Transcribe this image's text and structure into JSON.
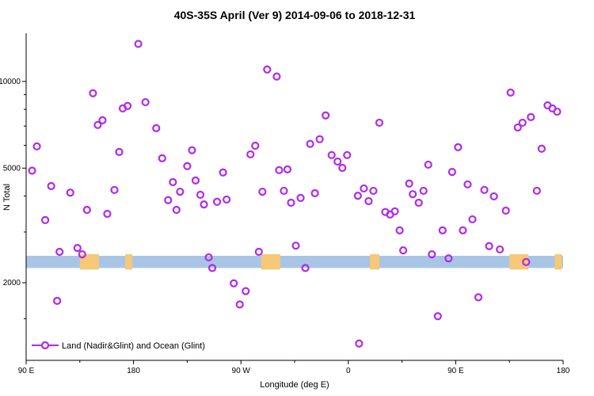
{
  "page": {
    "background": "#ffffff"
  },
  "chart_data": {
    "type": "scatter",
    "title": "40S-35S April (Ver 9)   2014-09-06 to 2018-12-31",
    "xlabel": "Longitude (deg E)",
    "ylabel": "N Total",
    "legend_label": "Land (Nadir&Glint) and Ocean (Glint)",
    "grid": false,
    "legend_position": "bottom-left-inside",
    "x_axis": {
      "min": 90,
      "max": 540,
      "major_ticks": [
        {
          "value": 90,
          "label": "90 E"
        },
        {
          "value": 180,
          "label": "180"
        },
        {
          "value": 270,
          "label": "90 W"
        },
        {
          "value": 360,
          "label": "0"
        },
        {
          "value": 450,
          "label": "90 E"
        },
        {
          "value": 540,
          "label": "180"
        }
      ],
      "minor_ticks": [
        135,
        225,
        315,
        405,
        495
      ]
    },
    "y_axis": {
      "scale": "log",
      "min": 1075,
      "max": 14700,
      "major_ticks": [
        {
          "value": 2000,
          "label": "2000"
        },
        {
          "value": 5000,
          "label": "5000"
        },
        {
          "value": 10000,
          "label": "10000"
        }
      ],
      "minor_ticks": [
        1500,
        3000,
        4000,
        6000,
        7000,
        8000,
        9000
      ]
    },
    "marker": {
      "shape": "open-circle",
      "color": "#b22ae8",
      "radius": 4,
      "stroke_width": 2.2
    },
    "map_band": {
      "description": "latitude-band map strip: ocean with land segments",
      "value_low": 2250,
      "value_high": 2480,
      "ocean_color": "#a9c5e6",
      "land_color": "#f6c878",
      "land_segments_deg": [
        [
          135,
          151
        ],
        [
          173,
          179
        ],
        [
          287,
          303
        ],
        [
          378,
          386
        ],
        [
          495,
          511
        ],
        [
          533,
          539
        ]
      ]
    },
    "points": [
      [
        95,
        4900
      ],
      [
        99,
        5950
      ],
      [
        106,
        3300
      ],
      [
        111,
        4330
      ],
      [
        116,
        1730
      ],
      [
        118,
        2560
      ],
      [
        127,
        4110
      ],
      [
        133,
        2640
      ],
      [
        137,
        2510
      ],
      [
        141,
        3580
      ],
      [
        146,
        9100
      ],
      [
        150,
        7060
      ],
      [
        154,
        7330
      ],
      [
        158,
        3470
      ],
      [
        164,
        4200
      ],
      [
        168,
        5690
      ],
      [
        171,
        8060
      ],
      [
        175,
        8220
      ],
      [
        184,
        13500
      ],
      [
        190,
        8470
      ],
      [
        199,
        6880
      ],
      [
        204,
        5410
      ],
      [
        209,
        3870
      ],
      [
        213,
        4470
      ],
      [
        216,
        3580
      ],
      [
        219,
        4140
      ],
      [
        225,
        5080
      ],
      [
        229,
        5770
      ],
      [
        232,
        4530
      ],
      [
        236,
        4040
      ],
      [
        239,
        3740
      ],
      [
        243,
        2450
      ],
      [
        246,
        2250
      ],
      [
        250,
        3820
      ],
      [
        255,
        4830
      ],
      [
        258,
        3890
      ],
      [
        264,
        1990
      ],
      [
        269,
        1680
      ],
      [
        274,
        1870
      ],
      [
        278,
        5580
      ],
      [
        282,
        5980
      ],
      [
        285,
        2560
      ],
      [
        288,
        4140
      ],
      [
        292,
        11000
      ],
      [
        300,
        10400
      ],
      [
        302,
        4920
      ],
      [
        306,
        4170
      ],
      [
        309,
        4950
      ],
      [
        312,
        3790
      ],
      [
        316,
        2690
      ],
      [
        320,
        3940
      ],
      [
        324,
        2250
      ],
      [
        328,
        6070
      ],
      [
        332,
        4090
      ],
      [
        336,
        6300
      ],
      [
        341,
        7620
      ],
      [
        346,
        5550
      ],
      [
        351,
        5270
      ],
      [
        355,
        5010
      ],
      [
        359,
        5550
      ],
      [
        368,
        4010
      ],
      [
        369,
        1230
      ],
      [
        373,
        4250
      ],
      [
        377,
        3840
      ],
      [
        381,
        4170
      ],
      [
        386,
        7190
      ],
      [
        391,
        3520
      ],
      [
        395,
        3450
      ],
      [
        399,
        3540
      ],
      [
        403,
        3040
      ],
      [
        406,
        2590
      ],
      [
        411,
        4420
      ],
      [
        414,
        4060
      ],
      [
        419,
        3790
      ],
      [
        423,
        4170
      ],
      [
        427,
        5140
      ],
      [
        430,
        2510
      ],
      [
        435,
        1530
      ],
      [
        439,
        3040
      ],
      [
        444,
        2430
      ],
      [
        447,
        4850
      ],
      [
        452,
        5910
      ],
      [
        456,
        3040
      ],
      [
        460,
        4390
      ],
      [
        464,
        3320
      ],
      [
        469,
        1780
      ],
      [
        474,
        4200
      ],
      [
        478,
        2680
      ],
      [
        482,
        3990
      ],
      [
        487,
        2610
      ],
      [
        492,
        3560
      ],
      [
        496,
        9150
      ],
      [
        502,
        6920
      ],
      [
        506,
        7190
      ],
      [
        509,
        2360
      ],
      [
        513,
        7520
      ],
      [
        518,
        4170
      ],
      [
        522,
        5840
      ],
      [
        527,
        8260
      ],
      [
        531,
        8060
      ],
      [
        535,
        7850
      ]
    ]
  }
}
